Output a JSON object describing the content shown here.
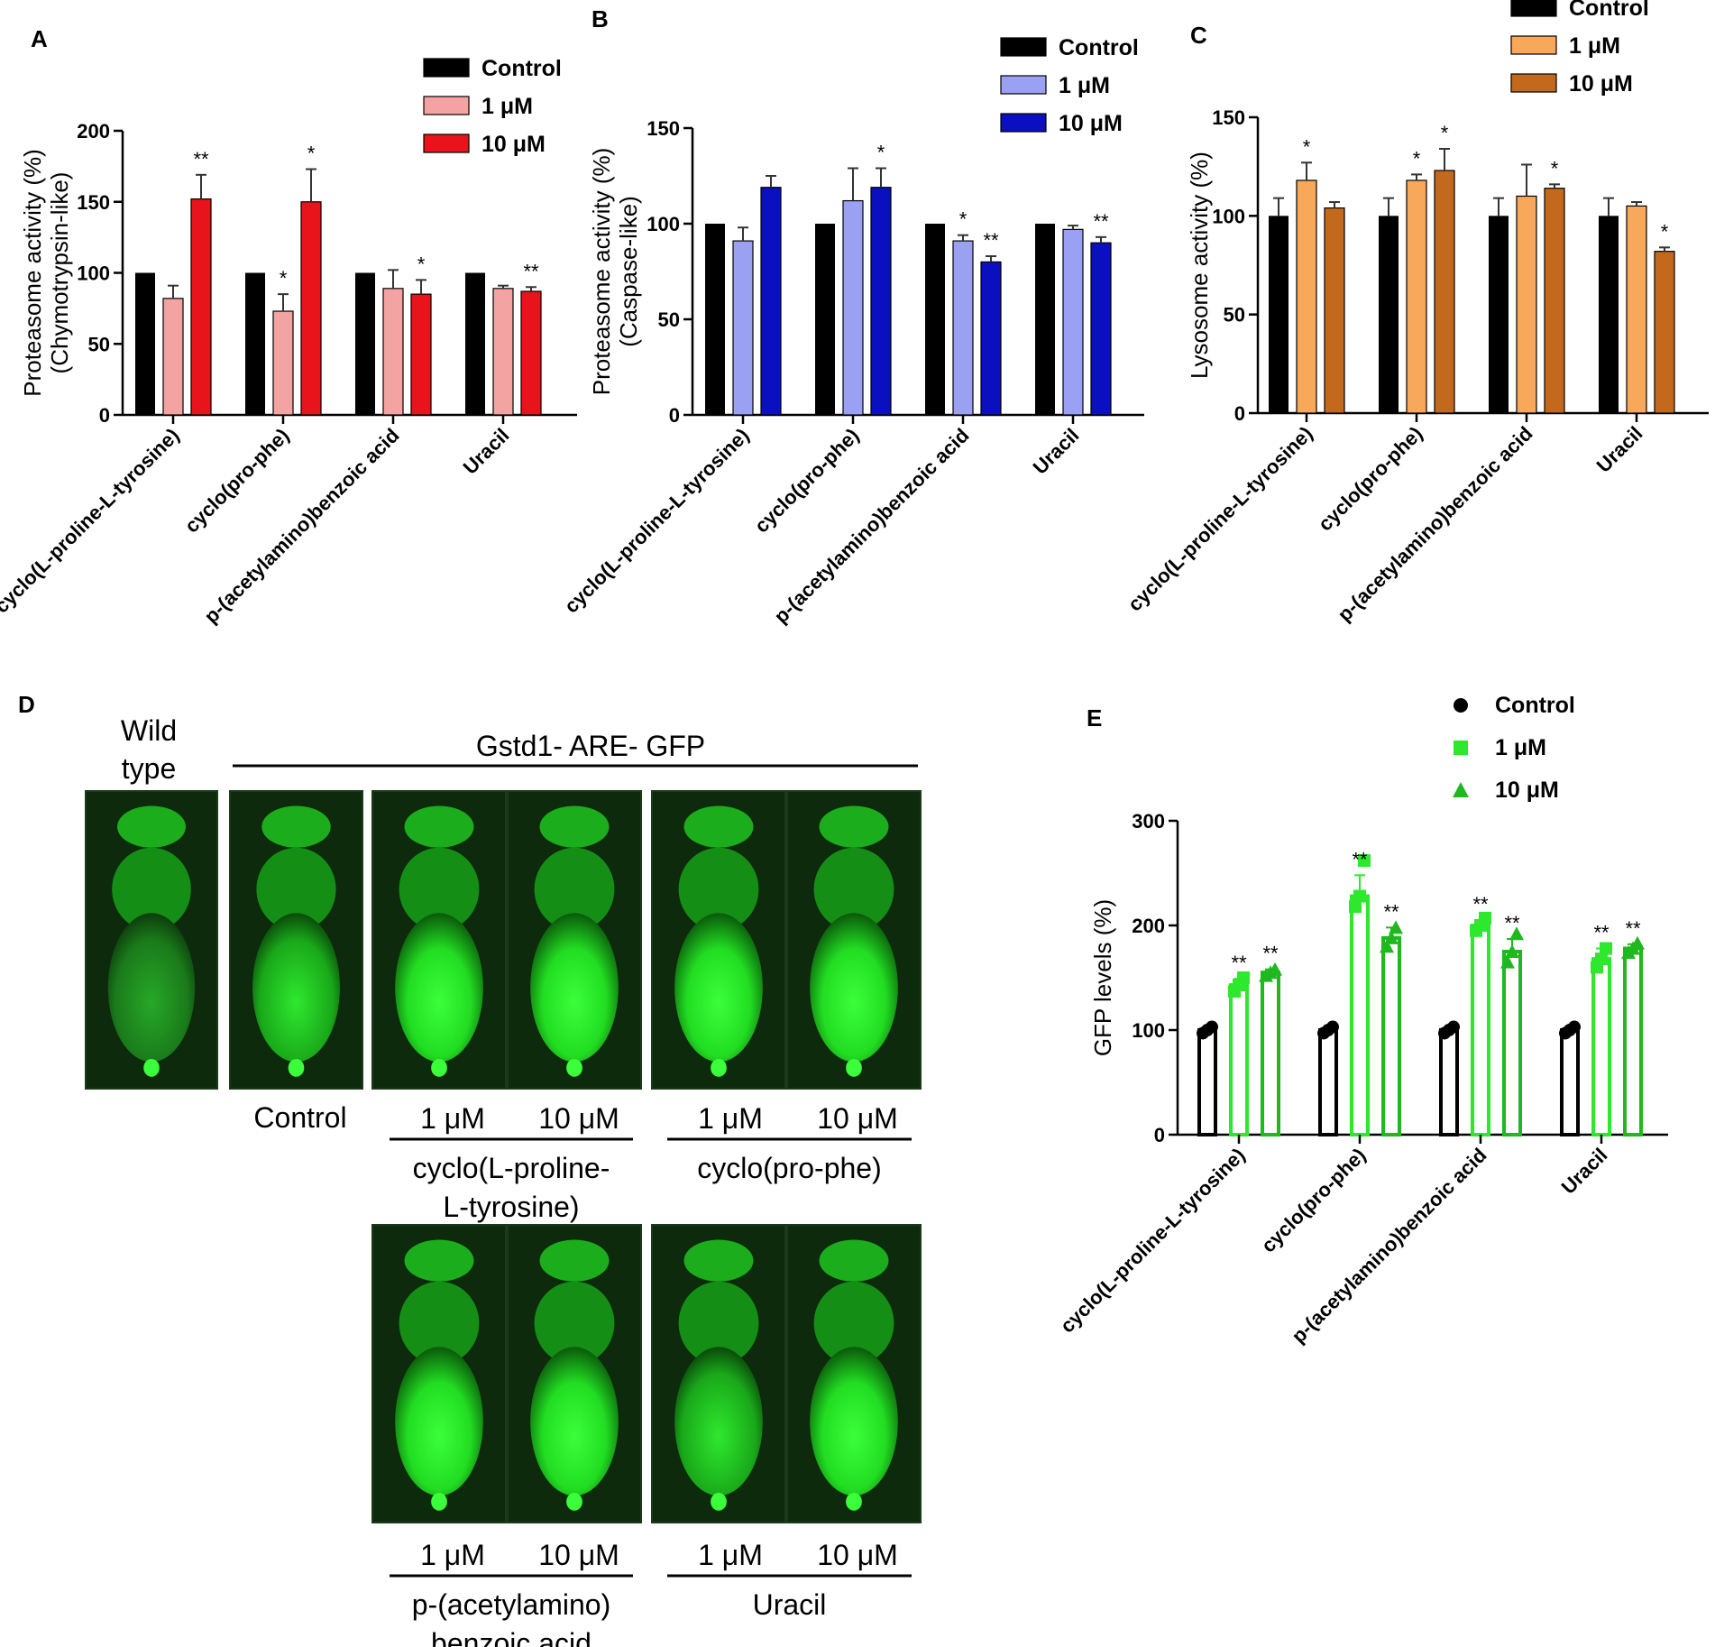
{
  "figure": {
    "panel_d": {
      "letter": "D",
      "wild_type_label": "Wild\ntype",
      "header": "Gstd1- ARE- GFP",
      "control_label": "Control",
      "dose_low": "1 μM",
      "dose_high": "10 μM",
      "groups": [
        {
          "name": "cyclo(L-proline-\nL-tyrosine)"
        },
        {
          "name": "cyclo(pro-phe)"
        },
        {
          "name": "p-(acetylamino)\nbenzoic acid"
        },
        {
          "name": "Uracil"
        }
      ]
    }
  },
  "chart_data": [
    {
      "panel": "A",
      "type": "bar",
      "ylabel": "Proteasome activity (%)\n(Chymotrypsin-like)",
      "ylim": [
        0,
        200
      ],
      "yticks": [
        0,
        50,
        100,
        150,
        200
      ],
      "categories": [
        "cyclo(L-proline-L-tyrosine)",
        "cyclo(pro-phe)",
        "p-(acetylamino)benzoic acid",
        "Uracil"
      ],
      "series": [
        {
          "name": "Control",
          "color": "#000000",
          "values": [
            100,
            100,
            100,
            100
          ],
          "err": [
            0,
            0,
            0,
            0
          ]
        },
        {
          "name": "1 μM",
          "color": "#f4a3a3",
          "values": [
            82,
            73,
            89,
            89
          ],
          "err": [
            9,
            12,
            13,
            2
          ]
        },
        {
          "name": "10 μM",
          "color": "#e8131b",
          "values": [
            152,
            150,
            85,
            87
          ],
          "err": [
            17,
            23,
            10,
            3
          ]
        }
      ],
      "significance": [
        [
          "",
          "",
          "**"
        ],
        [
          "",
          "*",
          "*"
        ],
        [
          "",
          "",
          "*"
        ],
        [
          "",
          "",
          "**"
        ]
      ],
      "legend": "top-right"
    },
    {
      "panel": "B",
      "type": "bar",
      "ylabel": "Proteasome activity (%)\n(Caspase-like)",
      "ylim": [
        0,
        150
      ],
      "yticks": [
        0,
        50,
        100,
        150
      ],
      "categories": [
        "cyclo(L-proline-L-tyrosine)",
        "cyclo(pro-phe)",
        "p-(acetylamino)benzoic acid",
        "Uracil"
      ],
      "series": [
        {
          "name": "Control",
          "color": "#000000",
          "values": [
            100,
            100,
            100,
            100
          ],
          "err": [
            0,
            0,
            0,
            0
          ]
        },
        {
          "name": "1 μM",
          "color": "#9aa0f2",
          "values": [
            91,
            112,
            91,
            97
          ],
          "err": [
            7,
            17,
            3,
            2
          ]
        },
        {
          "name": "10 μM",
          "color": "#0a0fc0",
          "values": [
            119,
            119,
            80,
            90
          ],
          "err": [
            6,
            10,
            3,
            3
          ]
        }
      ],
      "significance": [
        [
          "",
          "",
          ""
        ],
        [
          "",
          "",
          "*"
        ],
        [
          "",
          "*",
          "**"
        ],
        [
          "",
          "",
          "**"
        ]
      ],
      "legend": "top-right"
    },
    {
      "panel": "C",
      "type": "bar",
      "ylabel": "Lysosome activity (%)",
      "ylim": [
        0,
        150
      ],
      "yticks": [
        0,
        50,
        100,
        150
      ],
      "categories": [
        "cyclo(L-proline-L-tyrosine)",
        "cyclo(pro-phe)",
        "p-(acetylamino)benzoic acid",
        "Uracil"
      ],
      "series": [
        {
          "name": "Control",
          "color": "#000000",
          "values": [
            100,
            100,
            100,
            100
          ],
          "err": [
            9,
            9,
            9,
            9
          ]
        },
        {
          "name": "1 μM",
          "color": "#f7a85a",
          "values": [
            118,
            118,
            110,
            105
          ],
          "err": [
            9,
            3,
            16,
            2
          ]
        },
        {
          "name": "10 μM",
          "color": "#c2691d",
          "values": [
            104,
            123,
            114,
            82
          ],
          "err": [
            3,
            11,
            2,
            2
          ]
        }
      ],
      "significance": [
        [
          "",
          "*",
          ""
        ],
        [
          "",
          "*",
          "*"
        ],
        [
          "",
          "",
          "*"
        ],
        [
          "",
          "",
          "*"
        ]
      ],
      "legend": "top-right"
    },
    {
      "panel": "E",
      "type": "bar",
      "ylabel": "GFP levels (%)",
      "ylim": [
        0,
        300
      ],
      "yticks": [
        0,
        100,
        200,
        300
      ],
      "categories": [
        "cyclo(L-proline-L-tyrosine)",
        "cyclo(pro-phe)",
        "p-(acetylamino)benzoic acid",
        "Uracil"
      ],
      "series": [
        {
          "name": "Control",
          "color": "#000000",
          "marker": "circle",
          "values": [
            100,
            100,
            100,
            100
          ],
          "err": [
            2,
            2,
            2,
            2
          ],
          "points": [
            [
              97,
              100,
              103
            ],
            [
              97,
              100,
              103
            ],
            [
              97,
              100,
              103
            ],
            [
              97,
              100,
              103
            ]
          ]
        },
        {
          "name": "1 μM",
          "color": "#2ee82e",
          "marker": "square",
          "values": [
            143,
            228,
            200,
            168
          ],
          "err": [
            6,
            20,
            5,
            10
          ],
          "points": [
            [
              137,
              143,
              150
            ],
            [
              218,
              228,
              262
            ],
            [
              195,
              200,
              207
            ],
            [
              160,
              168,
              178
            ]
          ]
        },
        {
          "name": "10 μM",
          "color": "#1fb81f",
          "marker": "triangle",
          "values": [
            155,
            188,
            175,
            178
          ],
          "err": [
            3,
            10,
            12,
            4
          ],
          "points": [
            [
              152,
              155,
              158
            ],
            [
              180,
              188,
              198
            ],
            [
              165,
              175,
              192
            ],
            [
              174,
              178,
              183
            ]
          ]
        }
      ],
      "significance": [
        [
          "",
          "**",
          "**"
        ],
        [
          "",
          "**",
          "**"
        ],
        [
          "",
          "**",
          "**"
        ],
        [
          "",
          "**",
          "**"
        ]
      ],
      "legend": "top-right"
    }
  ]
}
